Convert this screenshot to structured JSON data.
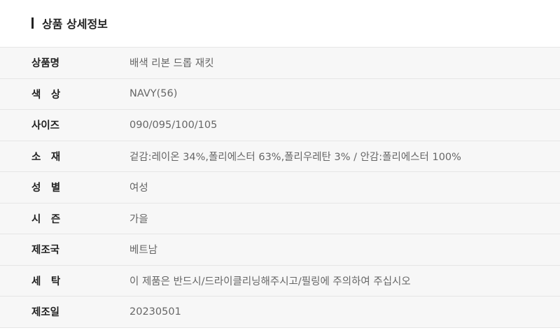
{
  "section": {
    "title": "상품 상세정보"
  },
  "rows": [
    {
      "label": "상품명",
      "value": "배색 리본 드롭 재킷"
    },
    {
      "label": "색　상",
      "value": "NAVY(56)"
    },
    {
      "label": "사이즈",
      "value": "090/095/100/105"
    },
    {
      "label": "소　재",
      "value": "겉감:레이온 34%,폴리에스터 63%,폴리우레탄 3% / 안감:폴리에스터 100%"
    },
    {
      "label": "성　별",
      "value": "여성"
    },
    {
      "label": "시　즌",
      "value": "가을"
    },
    {
      "label": "제조국",
      "value": "베트남"
    },
    {
      "label": "세　탁",
      "value": "이 제품은 반드시/드라이클리닝해주시고/필링에 주의하여 주십시오"
    },
    {
      "label": "제조일",
      "value": "20230501"
    }
  ]
}
